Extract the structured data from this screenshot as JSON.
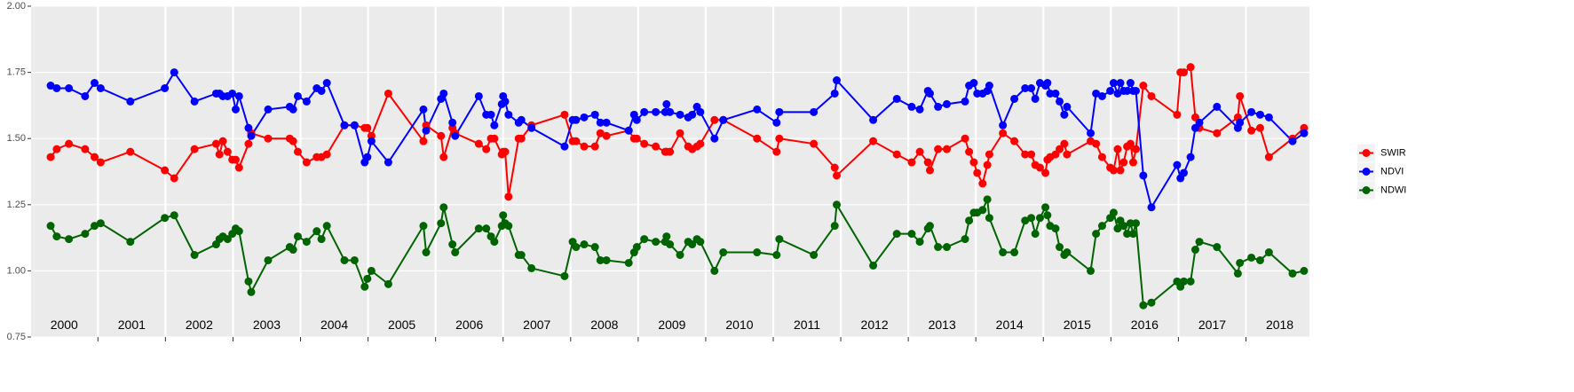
{
  "chart_data": {
    "type": "line",
    "x": [
      2000.3,
      2000.39,
      2000.57,
      2000.81,
      2000.95,
      2001.04,
      2001.48,
      2001.99,
      2002.13,
      2002.43,
      2002.75,
      2002.8,
      2002.85,
      2002.92,
      2002.99,
      2003.04,
      2003.09,
      2003.23,
      2003.27,
      2003.52,
      2003.84,
      2003.89,
      2003.96,
      2004.09,
      2004.24,
      2004.31,
      2004.39,
      2004.65,
      2004.8,
      2004.95,
      2004.99,
      2005.05,
      2005.3,
      2005.82,
      2005.86,
      2006.08,
      2006.12,
      2006.25,
      2006.29,
      2006.64,
      2006.75,
      2006.82,
      2006.87,
      2006.98,
      2007.0,
      2007.03,
      2007.08,
      2007.23,
      2007.27,
      2007.42,
      2007.91,
      2008.03,
      2008.08,
      2008.2,
      2008.36,
      2008.44,
      2008.53,
      2008.86,
      2008.94,
      2008.98,
      2009.09,
      2009.26,
      2009.4,
      2009.42,
      2009.47,
      2009.62,
      2009.74,
      2009.8,
      2009.87,
      2009.92,
      2010.13,
      2010.26,
      2010.76,
      2011.05,
      2011.09,
      2011.6,
      2011.91,
      2011.94,
      2012.48,
      2012.83,
      2013.05,
      2013.17,
      2013.29,
      2013.32,
      2013.44,
      2013.57,
      2013.84,
      2013.9,
      2013.97,
      2014.02,
      2014.1,
      2014.17,
      2014.2,
      2014.4,
      2014.57,
      2014.73,
      2014.82,
      2014.88,
      2014.95,
      2015.03,
      2015.06,
      2015.1,
      2015.18,
      2015.24,
      2015.31,
      2015.35,
      2015.7,
      2015.78,
      2015.87,
      2015.99,
      2016.04,
      2016.1,
      2016.14,
      2016.19,
      2016.24,
      2016.29,
      2016.33,
      2016.37,
      2016.48,
      2016.6,
      2016.98,
      2017.03,
      2017.08,
      2017.18,
      2017.25,
      2017.31,
      2017.57,
      2017.88,
      2017.91,
      2018.08,
      2018.21,
      2018.34,
      2018.69,
      2018.86
    ],
    "series": [
      {
        "name": "SWIR",
        "color": "#ff0000",
        "values": [
          1.43,
          1.46,
          1.48,
          1.46,
          1.43,
          1.41,
          1.45,
          1.38,
          1.35,
          1.46,
          1.48,
          1.44,
          1.49,
          1.45,
          1.42,
          1.42,
          1.39,
          1.48,
          1.52,
          1.5,
          1.5,
          1.49,
          1.45,
          1.41,
          1.43,
          1.43,
          1.44,
          1.55,
          1.55,
          1.54,
          1.54,
          1.51,
          1.67,
          1.49,
          1.55,
          1.51,
          1.43,
          1.54,
          1.52,
          1.48,
          1.46,
          1.5,
          1.5,
          1.44,
          1.45,
          1.45,
          1.28,
          1.5,
          1.5,
          1.55,
          1.59,
          1.49,
          1.49,
          1.47,
          1.47,
          1.52,
          1.51,
          1.53,
          1.5,
          1.5,
          1.48,
          1.47,
          1.45,
          1.45,
          1.45,
          1.52,
          1.47,
          1.46,
          1.47,
          1.48,
          1.57,
          1.57,
          1.5,
          1.45,
          1.5,
          1.48,
          1.39,
          1.36,
          1.49,
          1.44,
          1.41,
          1.45,
          1.41,
          1.38,
          1.46,
          1.46,
          1.5,
          1.45,
          1.41,
          1.37,
          1.33,
          1.4,
          1.44,
          1.52,
          1.49,
          1.44,
          1.44,
          1.4,
          1.39,
          1.37,
          1.42,
          1.43,
          1.44,
          1.46,
          1.48,
          1.44,
          1.49,
          1.48,
          1.43,
          1.39,
          1.38,
          1.46,
          1.38,
          1.41,
          1.47,
          1.48,
          1.41,
          1.46,
          1.7,
          1.66,
          1.59,
          1.75,
          1.75,
          1.77,
          1.58,
          1.54,
          1.52,
          1.58,
          1.66,
          1.53,
          1.54,
          1.43,
          1.5,
          1.54
        ]
      },
      {
        "name": "NDVI",
        "color": "#0000ff",
        "values": [
          1.7,
          1.69,
          1.69,
          1.66,
          1.71,
          1.69,
          1.64,
          1.69,
          1.75,
          1.64,
          1.67,
          1.67,
          1.66,
          1.66,
          1.67,
          1.61,
          1.66,
          1.54,
          1.51,
          1.61,
          1.62,
          1.61,
          1.66,
          1.64,
          1.69,
          1.68,
          1.71,
          1.55,
          1.55,
          1.41,
          1.43,
          1.49,
          1.41,
          1.61,
          1.53,
          1.65,
          1.67,
          1.56,
          1.51,
          1.66,
          1.59,
          1.59,
          1.55,
          1.63,
          1.66,
          1.64,
          1.59,
          1.56,
          1.57,
          1.54,
          1.47,
          1.57,
          1.57,
          1.58,
          1.59,
          1.56,
          1.56,
          1.53,
          1.59,
          1.57,
          1.6,
          1.6,
          1.6,
          1.63,
          1.6,
          1.59,
          1.58,
          1.59,
          1.62,
          1.6,
          1.5,
          1.57,
          1.61,
          1.56,
          1.6,
          1.6,
          1.67,
          1.72,
          1.57,
          1.65,
          1.62,
          1.61,
          1.68,
          1.67,
          1.62,
          1.63,
          1.64,
          1.7,
          1.71,
          1.67,
          1.67,
          1.68,
          1.7,
          1.55,
          1.65,
          1.69,
          1.69,
          1.65,
          1.71,
          1.7,
          1.71,
          1.67,
          1.67,
          1.64,
          1.59,
          1.62,
          1.52,
          1.67,
          1.66,
          1.68,
          1.71,
          1.67,
          1.71,
          1.68,
          1.68,
          1.71,
          1.68,
          1.68,
          1.36,
          1.24,
          1.4,
          1.35,
          1.37,
          1.43,
          1.54,
          1.56,
          1.62,
          1.54,
          1.56,
          1.6,
          1.59,
          1.58,
          1.49,
          1.52
        ]
      },
      {
        "name": "NDWI",
        "color": "#006400",
        "values": [
          1.17,
          1.13,
          1.12,
          1.14,
          1.17,
          1.18,
          1.11,
          1.2,
          1.21,
          1.06,
          1.1,
          1.12,
          1.13,
          1.12,
          1.14,
          1.16,
          1.15,
          0.96,
          0.92,
          1.04,
          1.09,
          1.08,
          1.13,
          1.11,
          1.15,
          1.12,
          1.17,
          1.04,
          1.04,
          0.94,
          0.97,
          1.0,
          0.95,
          1.17,
          1.07,
          1.18,
          1.24,
          1.1,
          1.07,
          1.16,
          1.16,
          1.13,
          1.11,
          1.17,
          1.21,
          1.18,
          1.17,
          1.06,
          1.06,
          1.01,
          0.98,
          1.11,
          1.09,
          1.1,
          1.09,
          1.04,
          1.04,
          1.03,
          1.07,
          1.09,
          1.12,
          1.11,
          1.11,
          1.13,
          1.1,
          1.06,
          1.11,
          1.1,
          1.12,
          1.11,
          1.0,
          1.07,
          1.07,
          1.06,
          1.12,
          1.06,
          1.17,
          1.25,
          1.02,
          1.14,
          1.14,
          1.11,
          1.16,
          1.17,
          1.09,
          1.09,
          1.12,
          1.19,
          1.22,
          1.22,
          1.23,
          1.27,
          1.2,
          1.07,
          1.07,
          1.19,
          1.2,
          1.14,
          1.2,
          1.24,
          1.21,
          1.17,
          1.16,
          1.09,
          1.06,
          1.07,
          1.0,
          1.14,
          1.17,
          1.2,
          1.22,
          1.16,
          1.19,
          1.17,
          1.14,
          1.18,
          1.14,
          1.18,
          0.87,
          0.88,
          0.96,
          0.94,
          0.96,
          0.96,
          1.08,
          1.11,
          1.09,
          0.99,
          1.03,
          1.05,
          1.04,
          1.07,
          0.99,
          1.0
        ]
      }
    ],
    "xlim": [
      2000.01,
      2018.94
    ],
    "ylim": [
      0.75,
      2.0
    ],
    "xticks": [
      2001,
      2002,
      2003,
      2004,
      2005,
      2006,
      2007,
      2008,
      2009,
      2010,
      2011,
      2012,
      2013,
      2014,
      2015,
      2016,
      2017,
      2018
    ],
    "yticks": [
      0.75,
      {
        "value": 1,
        "label": "1.00"
      },
      1.25,
      {
        "value": 1.5,
        "label": "1.50"
      },
      1.75,
      {
        "value": 2,
        "label": "2.00"
      }
    ],
    "year_labels": [
      {
        "value": 2000.5,
        "label": "2000"
      },
      {
        "value": 2001.5,
        "label": "2001"
      },
      {
        "value": 2002.5,
        "label": "2002"
      },
      {
        "value": 2003.5,
        "label": "2003"
      },
      {
        "value": 2004.5,
        "label": "2004"
      },
      {
        "value": 2005.5,
        "label": "2005"
      },
      {
        "value": 2006.5,
        "label": "2006"
      },
      {
        "value": 2007.5,
        "label": "2007"
      },
      {
        "value": 2008.5,
        "label": "2008"
      },
      {
        "value": 2009.5,
        "label": "2009"
      },
      {
        "value": 2010.5,
        "label": "2010"
      },
      {
        "value": 2011.5,
        "label": "2011"
      },
      {
        "value": 2012.5,
        "label": "2012"
      },
      {
        "value": 2013.5,
        "label": "2013"
      },
      {
        "value": 2014.5,
        "label": "2014"
      },
      {
        "value": 2015.5,
        "label": "2015"
      },
      {
        "value": 2016.5,
        "label": "2016"
      },
      {
        "value": 2017.5,
        "label": "2017"
      },
      {
        "value": 2018.5,
        "label": "2018"
      }
    ],
    "grid": true,
    "markers": true,
    "legend": "right"
  }
}
